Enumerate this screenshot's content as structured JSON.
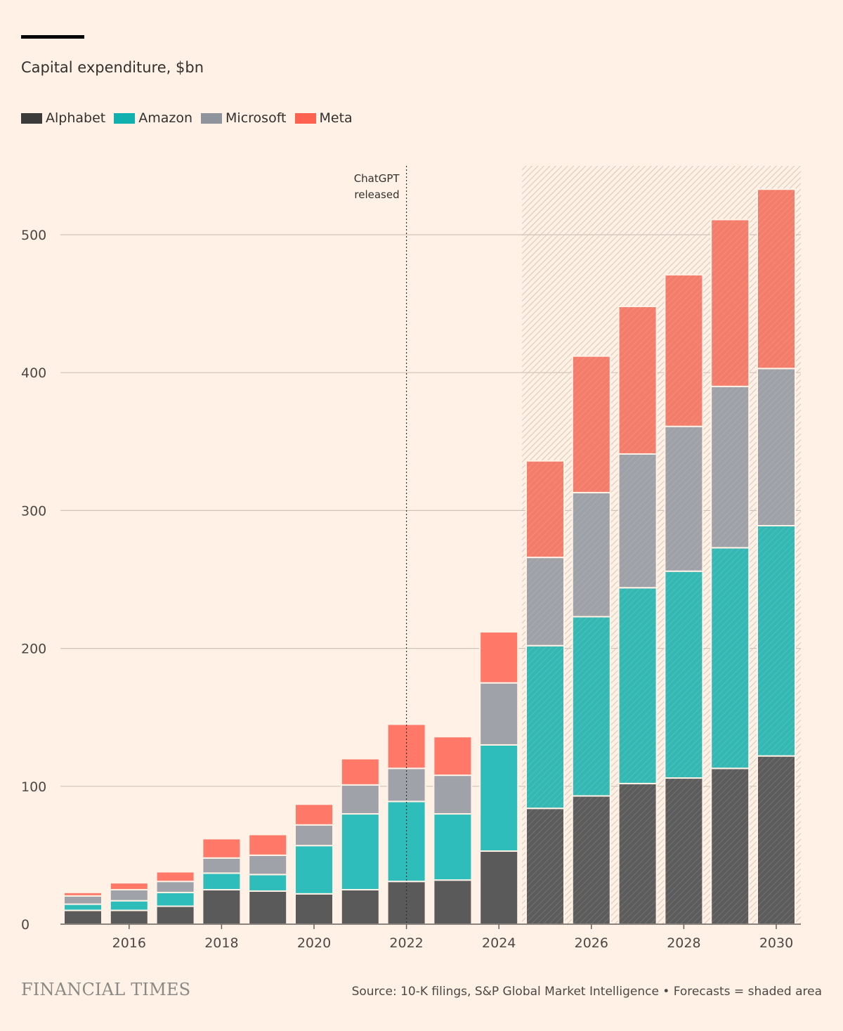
{
  "title": "Capital expenditure, $bn",
  "legend": [
    {
      "name": "Alphabet",
      "color": "#5a5a5a"
    },
    {
      "name": "Amazon",
      "color": "#23b9b5"
    },
    {
      "name": "Microsoft",
      "color": "#9ca0a7"
    },
    {
      "name": "Meta",
      "color": "#ff7563"
    }
  ],
  "annotation": {
    "line1": "ChatGPT",
    "line2": "released",
    "x": 2022
  },
  "forecast_start": 2025,
  "brand": "FINANCIAL TIMES",
  "source": "Source: 10-K filings, S&P Global Market Intelligence • Forecasts = shaded area",
  "chart_data": {
    "type": "bar",
    "stacked": true,
    "title": "Capital expenditure, $bn",
    "categories": [
      2015,
      2016,
      2017,
      2018,
      2019,
      2020,
      2021,
      2022,
      2023,
      2024,
      2025,
      2026,
      2027,
      2028,
      2029,
      2030
    ],
    "x_tick_labels": [
      "2016",
      "2018",
      "2020",
      "2022",
      "2024",
      "2026",
      "2028",
      "2030"
    ],
    "y_ticks": [
      0,
      100,
      200,
      300,
      400,
      500
    ],
    "ylim": [
      0,
      550
    ],
    "grid": true,
    "legend_position": "top-left",
    "series": [
      {
        "name": "Alphabet",
        "color": "#5a5a5a",
        "values": [
          10,
          10,
          13,
          25,
          24,
          22,
          25,
          31,
          32,
          53,
          84,
          93,
          102,
          106,
          113,
          122
        ]
      },
      {
        "name": "Amazon",
        "color": "#23b9b5",
        "values": [
          4.5,
          7,
          10,
          12,
          12,
          35,
          55,
          58,
          48,
          77,
          118,
          130,
          142,
          150,
          160,
          167
        ]
      },
      {
        "name": "Microsoft",
        "color": "#9ca0a7",
        "values": [
          6,
          8,
          8,
          11,
          14,
          15,
          21,
          24,
          28,
          45,
          64,
          90,
          97,
          105,
          117,
          114
        ]
      },
      {
        "name": "Meta",
        "color": "#ff7563",
        "values": [
          2.5,
          5,
          7,
          14,
          15,
          15,
          19,
          32,
          28,
          37,
          70,
          99,
          107,
          110,
          121,
          130
        ]
      }
    ],
    "forecast_from": 2025
  }
}
